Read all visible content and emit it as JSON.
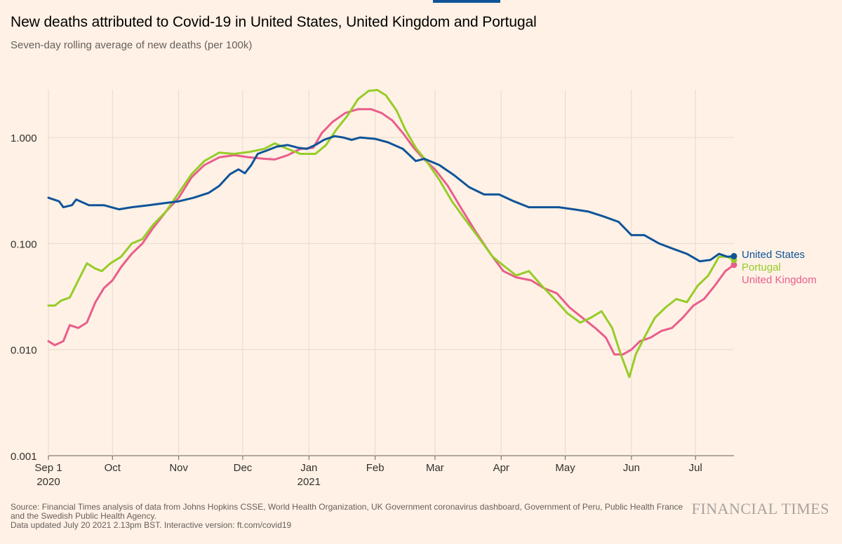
{
  "header": {
    "title": "New deaths attributed to Covid-19 in United States, United Kingdom and Portugal",
    "subtitle": "Seven-day rolling average of new deaths (per 100k)"
  },
  "footer": {
    "source_line1": "Source: Financial Times analysis of data from Johns Hopkins CSSE, World Health Organization, UK Government coronavirus dashboard, Government of Peru, Public Health France",
    "source_line2": "and the Swedish Public Health Agency.",
    "source_line3": "Data updated July 20 2021 2.13pm BST. Interactive version: ft.com/covid19",
    "logo": "FINANCIAL TIMES"
  },
  "chart_data": {
    "type": "line",
    "title": "New deaths attributed to Covid-19 in United States, United Kingdom and Portugal",
    "subtitle": "Seven-day rolling average of new deaths (per 100k)",
    "y_scale": "log",
    "ylim": [
      0.001,
      3
    ],
    "y_ticks": [
      0.001,
      0.01,
      0.1,
      1
    ],
    "y_tick_labels": [
      "0.001",
      "0.010",
      "0.100",
      "1.000"
    ],
    "x_range": [
      "2020-09-01",
      "2021-07-19"
    ],
    "x_ticks": [
      {
        "date": "2020-09-01",
        "label": "Sep 1",
        "sublabel": "2020"
      },
      {
        "date": "2020-10-01",
        "label": "Oct",
        "sublabel": ""
      },
      {
        "date": "2020-11-01",
        "label": "Nov",
        "sublabel": ""
      },
      {
        "date": "2020-12-01",
        "label": "Dec",
        "sublabel": ""
      },
      {
        "date": "2021-01-01",
        "label": "Jan",
        "sublabel": "2021"
      },
      {
        "date": "2021-02-01",
        "label": "Feb",
        "sublabel": ""
      },
      {
        "date": "2021-03-01",
        "label": "Mar",
        "sublabel": ""
      },
      {
        "date": "2021-04-01",
        "label": "Apr",
        "sublabel": ""
      },
      {
        "date": "2021-05-01",
        "label": "May",
        "sublabel": ""
      },
      {
        "date": "2021-06-01",
        "label": "Jun",
        "sublabel": ""
      },
      {
        "date": "2021-07-01",
        "label": "Jul",
        "sublabel": ""
      }
    ],
    "grid": true,
    "legend": "right-end labels",
    "series": [
      {
        "name": "United States",
        "color": "#0f5499",
        "points": [
          [
            "2020-09-01",
            0.27
          ],
          [
            "2020-09-06",
            0.25
          ],
          [
            "2020-09-08",
            0.22
          ],
          [
            "2020-09-12",
            0.23
          ],
          [
            "2020-09-14",
            0.26
          ],
          [
            "2020-09-20",
            0.23
          ],
          [
            "2020-09-27",
            0.23
          ],
          [
            "2020-10-04",
            0.21
          ],
          [
            "2020-10-10",
            0.22
          ],
          [
            "2020-10-18",
            0.23
          ],
          [
            "2020-10-25",
            0.24
          ],
          [
            "2020-11-01",
            0.25
          ],
          [
            "2020-11-08",
            0.27
          ],
          [
            "2020-11-15",
            0.3
          ],
          [
            "2020-11-20",
            0.35
          ],
          [
            "2020-11-25",
            0.45
          ],
          [
            "2020-11-29",
            0.5
          ],
          [
            "2020-12-02",
            0.46
          ],
          [
            "2020-12-05",
            0.55
          ],
          [
            "2020-12-08",
            0.7
          ],
          [
            "2020-12-12",
            0.75
          ],
          [
            "2020-12-17",
            0.82
          ],
          [
            "2020-12-22",
            0.85
          ],
          [
            "2020-12-27",
            0.8
          ],
          [
            "2020-12-31",
            0.78
          ],
          [
            "2021-01-04",
            0.85
          ],
          [
            "2021-01-08",
            0.95
          ],
          [
            "2021-01-13",
            1.03
          ],
          [
            "2021-01-17",
            1.0
          ],
          [
            "2021-01-21",
            0.95
          ],
          [
            "2021-01-25",
            1.0
          ],
          [
            "2021-02-01",
            0.97
          ],
          [
            "2021-02-07",
            0.9
          ],
          [
            "2021-02-14",
            0.78
          ],
          [
            "2021-02-20",
            0.6
          ],
          [
            "2021-02-24",
            0.63
          ],
          [
            "2021-03-03",
            0.55
          ],
          [
            "2021-03-10",
            0.44
          ],
          [
            "2021-03-17",
            0.34
          ],
          [
            "2021-03-24",
            0.29
          ],
          [
            "2021-03-31",
            0.29
          ],
          [
            "2021-04-07",
            0.25
          ],
          [
            "2021-04-14",
            0.22
          ],
          [
            "2021-04-21",
            0.22
          ],
          [
            "2021-04-28",
            0.22
          ],
          [
            "2021-05-05",
            0.21
          ],
          [
            "2021-05-12",
            0.2
          ],
          [
            "2021-05-19",
            0.18
          ],
          [
            "2021-05-26",
            0.16
          ],
          [
            "2021-06-01",
            0.12
          ],
          [
            "2021-06-07",
            0.12
          ],
          [
            "2021-06-14",
            0.1
          ],
          [
            "2021-06-20",
            0.09
          ],
          [
            "2021-06-27",
            0.08
          ],
          [
            "2021-07-03",
            0.068
          ],
          [
            "2021-07-08",
            0.07
          ],
          [
            "2021-07-12",
            0.08
          ],
          [
            "2021-07-16",
            0.075
          ],
          [
            "2021-07-19",
            0.076
          ]
        ]
      },
      {
        "name": "Portugal",
        "color": "#96cc28",
        "points": [
          [
            "2020-09-01",
            0.026
          ],
          [
            "2020-09-04",
            0.026
          ],
          [
            "2020-09-07",
            0.029
          ],
          [
            "2020-09-11",
            0.031
          ],
          [
            "2020-09-15",
            0.045
          ],
          [
            "2020-09-19",
            0.065
          ],
          [
            "2020-09-23",
            0.058
          ],
          [
            "2020-09-26",
            0.055
          ],
          [
            "2020-09-30",
            0.065
          ],
          [
            "2020-10-05",
            0.075
          ],
          [
            "2020-10-10",
            0.1
          ],
          [
            "2020-10-15",
            0.11
          ],
          [
            "2020-10-20",
            0.15
          ],
          [
            "2020-10-26",
            0.2
          ],
          [
            "2020-11-01",
            0.3
          ],
          [
            "2020-11-07",
            0.45
          ],
          [
            "2020-11-13",
            0.6
          ],
          [
            "2020-11-20",
            0.72
          ],
          [
            "2020-11-27",
            0.7
          ],
          [
            "2020-12-04",
            0.73
          ],
          [
            "2020-12-11",
            0.78
          ],
          [
            "2020-12-16",
            0.88
          ],
          [
            "2020-12-22",
            0.78
          ],
          [
            "2020-12-28",
            0.7
          ],
          [
            "2021-01-04",
            0.7
          ],
          [
            "2021-01-09",
            0.85
          ],
          [
            "2021-01-14",
            1.2
          ],
          [
            "2021-01-19",
            1.6
          ],
          [
            "2021-01-24",
            2.3
          ],
          [
            "2021-01-29",
            2.75
          ],
          [
            "2021-02-02",
            2.8
          ],
          [
            "2021-02-06",
            2.5
          ],
          [
            "2021-02-11",
            1.8
          ],
          [
            "2021-02-15",
            1.2
          ],
          [
            "2021-02-20",
            0.8
          ],
          [
            "2021-02-25",
            0.6
          ],
          [
            "2021-03-03",
            0.4
          ],
          [
            "2021-03-09",
            0.25
          ],
          [
            "2021-03-15",
            0.17
          ],
          [
            "2021-03-22",
            0.11
          ],
          [
            "2021-03-28",
            0.075
          ],
          [
            "2021-04-03",
            0.06
          ],
          [
            "2021-04-08",
            0.05
          ],
          [
            "2021-04-14",
            0.055
          ],
          [
            "2021-04-20",
            0.04
          ],
          [
            "2021-04-26",
            0.03
          ],
          [
            "2021-05-02",
            0.022
          ],
          [
            "2021-05-08",
            0.018
          ],
          [
            "2021-05-13",
            0.02
          ],
          [
            "2021-05-18",
            0.023
          ],
          [
            "2021-05-23",
            0.016
          ],
          [
            "2021-05-27",
            0.009
          ],
          [
            "2021-05-31",
            0.0055
          ],
          [
            "2021-06-03",
            0.009
          ],
          [
            "2021-06-07",
            0.013
          ],
          [
            "2021-06-12",
            0.02
          ],
          [
            "2021-06-17",
            0.025
          ],
          [
            "2021-06-22",
            0.03
          ],
          [
            "2021-06-27",
            0.028
          ],
          [
            "2021-07-02",
            0.04
          ],
          [
            "2021-07-07",
            0.05
          ],
          [
            "2021-07-12",
            0.075
          ],
          [
            "2021-07-16",
            0.075
          ],
          [
            "2021-07-19",
            0.07
          ]
        ]
      },
      {
        "name": "United Kingdom",
        "color": "#e95d8c",
        "points": [
          [
            "2020-09-01",
            0.012
          ],
          [
            "2020-09-04",
            0.011
          ],
          [
            "2020-09-08",
            0.012
          ],
          [
            "2020-09-11",
            0.017
          ],
          [
            "2020-09-15",
            0.016
          ],
          [
            "2020-09-19",
            0.018
          ],
          [
            "2020-09-23",
            0.028
          ],
          [
            "2020-09-27",
            0.038
          ],
          [
            "2020-10-01",
            0.045
          ],
          [
            "2020-10-05",
            0.06
          ],
          [
            "2020-10-10",
            0.08
          ],
          [
            "2020-10-15",
            0.1
          ],
          [
            "2020-10-20",
            0.14
          ],
          [
            "2020-10-26",
            0.2
          ],
          [
            "2020-11-01",
            0.27
          ],
          [
            "2020-11-07",
            0.42
          ],
          [
            "2020-11-13",
            0.55
          ],
          [
            "2020-11-20",
            0.65
          ],
          [
            "2020-11-27",
            0.68
          ],
          [
            "2020-12-04",
            0.65
          ],
          [
            "2020-12-11",
            0.63
          ],
          [
            "2020-12-16",
            0.62
          ],
          [
            "2020-12-22",
            0.68
          ],
          [
            "2020-12-28",
            0.78
          ],
          [
            "2021-01-03",
            0.8
          ],
          [
            "2021-01-07",
            1.1
          ],
          [
            "2021-01-12",
            1.4
          ],
          [
            "2021-01-18",
            1.7
          ],
          [
            "2021-01-24",
            1.85
          ],
          [
            "2021-01-30",
            1.85
          ],
          [
            "2021-02-04",
            1.7
          ],
          [
            "2021-02-09",
            1.45
          ],
          [
            "2021-02-14",
            1.1
          ],
          [
            "2021-02-19",
            0.8
          ],
          [
            "2021-02-24",
            0.62
          ],
          [
            "2021-03-01",
            0.5
          ],
          [
            "2021-03-07",
            0.35
          ],
          [
            "2021-03-13",
            0.22
          ],
          [
            "2021-03-20",
            0.13
          ],
          [
            "2021-03-27",
            0.08
          ],
          [
            "2021-04-02",
            0.055
          ],
          [
            "2021-04-08",
            0.048
          ],
          [
            "2021-04-15",
            0.045
          ],
          [
            "2021-04-21",
            0.038
          ],
          [
            "2021-04-27",
            0.034
          ],
          [
            "2021-05-03",
            0.025
          ],
          [
            "2021-05-09",
            0.02
          ],
          [
            "2021-05-15",
            0.016
          ],
          [
            "2021-05-20",
            0.013
          ],
          [
            "2021-05-24",
            0.009
          ],
          [
            "2021-05-28",
            0.009
          ],
          [
            "2021-06-01",
            0.01
          ],
          [
            "2021-06-05",
            0.012
          ],
          [
            "2021-06-10",
            0.013
          ],
          [
            "2021-06-15",
            0.015
          ],
          [
            "2021-06-20",
            0.016
          ],
          [
            "2021-06-25",
            0.02
          ],
          [
            "2021-06-30",
            0.026
          ],
          [
            "2021-07-05",
            0.03
          ],
          [
            "2021-07-10",
            0.04
          ],
          [
            "2021-07-15",
            0.055
          ],
          [
            "2021-07-19",
            0.063
          ]
        ]
      }
    ]
  }
}
